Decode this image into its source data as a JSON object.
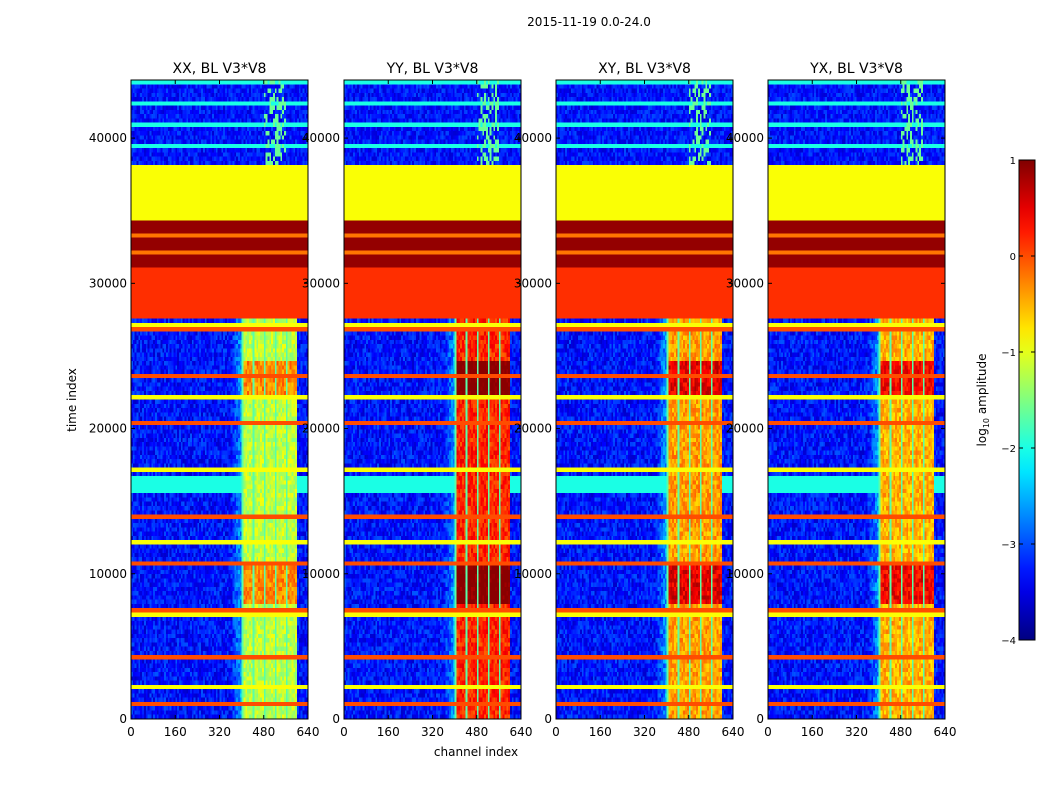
{
  "figure": {
    "suptitle": "2015-11-19 0.0-24.0"
  },
  "chart_data": {
    "type": "heatmap",
    "suptitle": "2015-11-19 0.0-24.0",
    "xlabel": "channel index",
    "ylabel": "time index",
    "xlim": [
      0,
      640
    ],
    "ylim": [
      0,
      44000
    ],
    "xticks": [
      0,
      160,
      320,
      480,
      640
    ],
    "yticks": [
      0,
      10000,
      20000,
      30000,
      40000
    ],
    "panels": [
      {
        "title": "XX, BL V3*V8",
        "pol": "XX",
        "band_center_level": -1.2
      },
      {
        "title": "YY, BL V3*V8",
        "pol": "YY",
        "band_center_level": 0.2
      },
      {
        "title": "XY, BL V3*V8",
        "pol": "XY",
        "band_center_level": -0.4
      },
      {
        "title": "YX, BL V3*V8",
        "pol": "YX",
        "band_center_level": -0.5
      }
    ],
    "flagged_blocks": [
      {
        "from": 38200,
        "to": 34200,
        "value": -0.9
      },
      {
        "from": 34200,
        "to": 31200,
        "value": 0.9
      },
      {
        "from": 31200,
        "to": 27500,
        "value": 0.15
      }
    ],
    "signal_band": {
      "channel_start": 400,
      "channel_end": 600
    },
    "strong_rows": [
      {
        "from": 8000,
        "to": 10500
      },
      {
        "from": 22000,
        "to": 24500
      }
    ],
    "background_level": -3.3,
    "colorbar": {
      "label": "log₁₀ amplitude",
      "label_base": "log",
      "label_sub": "10",
      "label_rest": " amplitude",
      "min": -4,
      "max": 1,
      "ticks": [
        "1",
        "0",
        "−1",
        "−2",
        "−3",
        "−4"
      ],
      "tick_values": [
        1,
        0,
        -1,
        -2,
        -3,
        -4
      ],
      "colormap": "jet"
    }
  }
}
